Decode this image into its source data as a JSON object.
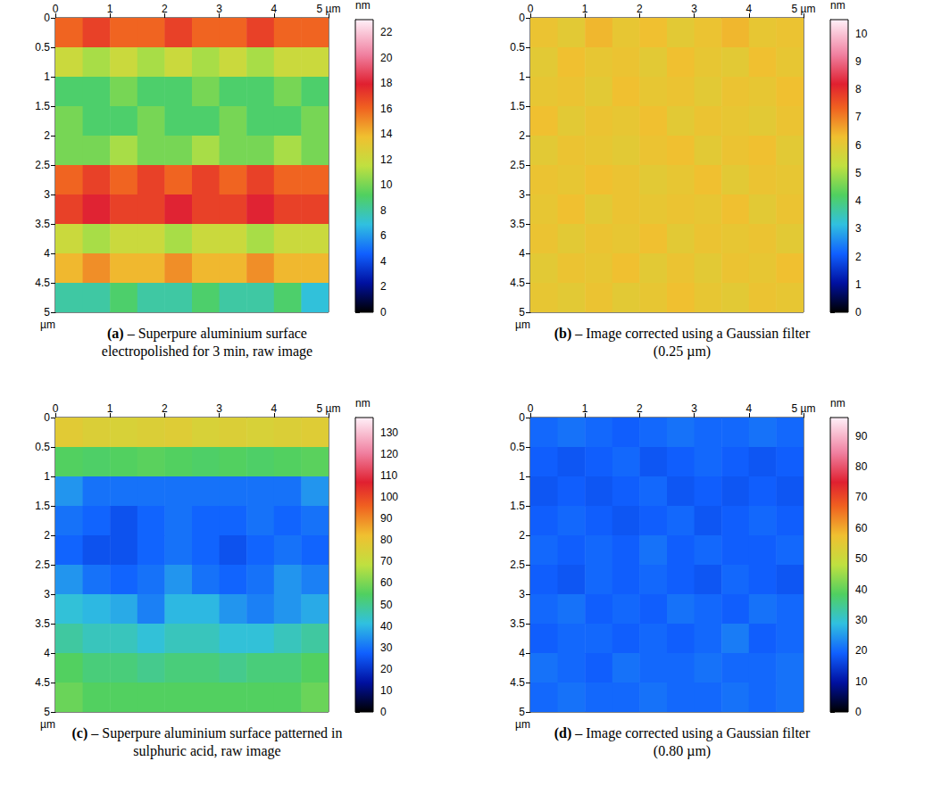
{
  "chart_data": [
    {
      "type": "heatmap",
      "label": "(a)",
      "caption": "– Superpure aluminium surface electropolished for 3 min, raw image",
      "xlim": [
        0,
        5
      ],
      "xticks": [
        0,
        1,
        2,
        3,
        4,
        {
          "value": 5,
          "label": "5 µm"
        }
      ],
      "ylim": [
        0,
        5
      ],
      "yticks": [
        0,
        0.5,
        1,
        1.5,
        2,
        2.5,
        3,
        3.5,
        4,
        4.5,
        5
      ],
      "y_label": "µm",
      "x": [
        0.25,
        0.75,
        1.25,
        1.75,
        2.25,
        2.75,
        3.25,
        3.75,
        4.25,
        4.75
      ],
      "y": [
        0.25,
        0.75,
        1.25,
        1.75,
        2.25,
        2.75,
        3.25,
        3.75,
        4.25,
        4.75
      ],
      "cells": [
        [
          16,
          17,
          16,
          16,
          17,
          16,
          16,
          17,
          16,
          16
        ],
        [
          12,
          11,
          12,
          11,
          12,
          11,
          12,
          11,
          12,
          12
        ],
        [
          9,
          9,
          10,
          9,
          9,
          10,
          9,
          9,
          10,
          9
        ],
        [
          10,
          9,
          9,
          10,
          9,
          9,
          10,
          9,
          9,
          10
        ],
        [
          10,
          10,
          11,
          10,
          10,
          11,
          10,
          10,
          11,
          10
        ],
        [
          16,
          17,
          16,
          17,
          16,
          17,
          16,
          17,
          16,
          16
        ],
        [
          17,
          18,
          17,
          17,
          18,
          17,
          17,
          18,
          17,
          17
        ],
        [
          12,
          11,
          12,
          12,
          11,
          12,
          12,
          11,
          12,
          12
        ],
        [
          14,
          15,
          14,
          14,
          15,
          14,
          14,
          15,
          14,
          14
        ],
        [
          8,
          8,
          9,
          8,
          8,
          9,
          8,
          8,
          9,
          7
        ]
      ],
      "colorbar_label": "nm",
      "colorbar_lim": [
        0,
        23
      ],
      "colorbar_ticks": [
        0,
        2,
        4,
        6,
        8,
        10,
        12,
        14,
        16,
        18,
        20,
        22
      ]
    },
    {
      "type": "heatmap",
      "label": "(b)",
      "caption": "– Image corrected using a Gaussian filter (0.25 µm)",
      "xlim": [
        0,
        5
      ],
      "xticks": [
        0,
        1,
        2,
        3,
        4,
        {
          "value": 5,
          "label": "5 µm"
        }
      ],
      "ylim": [
        0,
        5
      ],
      "yticks": [
        0,
        0.5,
        1,
        1.5,
        2,
        2.5,
        3,
        3.5,
        4,
        4.5,
        5
      ],
      "y_label": "µm",
      "x": [
        0.25,
        0.75,
        1.25,
        1.75,
        2.25,
        2.75,
        3.25,
        3.75,
        4.25,
        4.75
      ],
      "y": [
        0.25,
        0.75,
        1.25,
        1.75,
        2.25,
        2.75,
        3.25,
        3.75,
        4.25,
        4.75
      ],
      "cells": [
        [
          6.2,
          6.0,
          6.4,
          6.1,
          6.3,
          6.0,
          6.2,
          6.4,
          6.1,
          6.2
        ],
        [
          6.0,
          6.3,
          6.1,
          6.2,
          6.0,
          6.3,
          6.1,
          6.0,
          6.3,
          6.1
        ],
        [
          6.1,
          6.2,
          6.0,
          6.3,
          6.1,
          6.2,
          6.0,
          6.2,
          6.1,
          6.3
        ],
        [
          6.3,
          6.0,
          6.2,
          6.1,
          6.3,
          6.0,
          6.2,
          6.1,
          6.0,
          6.2
        ],
        [
          6.0,
          6.2,
          6.1,
          6.0,
          6.2,
          6.3,
          6.0,
          6.2,
          6.3,
          6.0
        ],
        [
          6.2,
          6.1,
          6.3,
          6.2,
          6.0,
          6.1,
          6.3,
          6.0,
          6.2,
          6.1
        ],
        [
          6.1,
          6.3,
          6.0,
          6.2,
          6.1,
          6.2,
          6.1,
          6.3,
          6.0,
          6.2
        ],
        [
          6.2,
          6.0,
          6.2,
          6.1,
          6.3,
          6.0,
          6.2,
          6.1,
          6.2,
          6.0
        ],
        [
          6.0,
          6.2,
          6.1,
          6.3,
          6.0,
          6.2,
          6.0,
          6.2,
          6.1,
          6.3
        ],
        [
          6.1,
          6.0,
          6.2,
          6.0,
          6.1,
          6.3,
          6.1,
          6.0,
          6.2,
          6.1
        ]
      ],
      "colorbar_label": "nm",
      "colorbar_lim": [
        0,
        10.5
      ],
      "colorbar_ticks": [
        0,
        1,
        2,
        3,
        4,
        5,
        6,
        7,
        8,
        9,
        10
      ]
    },
    {
      "type": "heatmap",
      "label": "(c)",
      "caption": "– Superpure aluminium surface patterned in sulphuric acid, raw image",
      "xlim": [
        0,
        5
      ],
      "xticks": [
        0,
        1,
        2,
        3,
        4,
        {
          "value": 5,
          "label": "5 µm"
        }
      ],
      "ylim": [
        0,
        5
      ],
      "yticks": [
        0,
        0.5,
        1,
        1.5,
        2,
        2.5,
        3,
        3.5,
        4,
        4.5,
        5
      ],
      "y_label": "µm",
      "x": [
        0.25,
        0.75,
        1.25,
        1.75,
        2.25,
        2.75,
        3.25,
        3.75,
        4.25,
        4.75
      ],
      "y": [
        0.25,
        0.75,
        1.25,
        1.75,
        2.25,
        2.75,
        3.25,
        3.75,
        4.25,
        4.75
      ],
      "cells": [
        [
          78,
          76,
          75,
          76,
          77,
          75,
          76,
          75,
          76,
          77
        ],
        [
          55,
          54,
          55,
          56,
          55,
          54,
          55,
          54,
          55,
          56
        ],
        [
          35,
          30,
          30,
          30,
          30,
          30,
          30,
          30,
          30,
          35
        ],
        [
          30,
          28,
          25,
          28,
          30,
          28,
          28,
          30,
          28,
          30
        ],
        [
          28,
          25,
          25,
          28,
          30,
          28,
          25,
          28,
          30,
          28
        ],
        [
          35,
          30,
          28,
          30,
          35,
          30,
          28,
          30,
          35,
          32
        ],
        [
          42,
          40,
          38,
          32,
          40,
          40,
          35,
          32,
          35,
          38
        ],
        [
          48,
          45,
          45,
          42,
          45,
          45,
          42,
          42,
          45,
          48
        ],
        [
          55,
          52,
          52,
          50,
          52,
          52,
          50,
          52,
          52,
          55
        ],
        [
          58,
          55,
          55,
          55,
          55,
          55,
          55,
          55,
          55,
          58
        ]
      ],
      "colorbar_label": "nm",
      "colorbar_lim": [
        0,
        137
      ],
      "colorbar_ticks": [
        0,
        10,
        20,
        30,
        40,
        50,
        60,
        70,
        80,
        90,
        100,
        110,
        120,
        130
      ]
    },
    {
      "type": "heatmap",
      "label": "(d)",
      "caption": "– Image corrected using a Gaussian filter (0.80 µm)",
      "xlim": [
        0,
        5
      ],
      "xticks": [
        0,
        1,
        2,
        3,
        4,
        {
          "value": 5,
          "label": "5 µm"
        }
      ],
      "ylim": [
        0,
        5
      ],
      "yticks": [
        0,
        0.5,
        1,
        1.5,
        2,
        2.5,
        3,
        3.5,
        4,
        4.5,
        5
      ],
      "y_label": "µm",
      "x": [
        0.25,
        0.75,
        1.25,
        1.75,
        2.25,
        2.75,
        3.25,
        3.75,
        4.25,
        4.75
      ],
      "y": [
        0.25,
        0.75,
        1.25,
        1.75,
        2.25,
        2.75,
        3.25,
        3.75,
        4.25,
        4.75
      ],
      "cells": [
        [
          20,
          21,
          20,
          19,
          20,
          21,
          20,
          20,
          21,
          20
        ],
        [
          19,
          18,
          19,
          20,
          18,
          19,
          20,
          19,
          18,
          19
        ],
        [
          18,
          19,
          18,
          19,
          20,
          18,
          19,
          18,
          19,
          18
        ],
        [
          19,
          20,
          19,
          18,
          19,
          20,
          18,
          19,
          20,
          19
        ],
        [
          20,
          19,
          20,
          19,
          21,
          19,
          20,
          19,
          19,
          20
        ],
        [
          19,
          18,
          20,
          19,
          20,
          19,
          18,
          20,
          19,
          18
        ],
        [
          20,
          21,
          19,
          20,
          19,
          21,
          20,
          19,
          21,
          20
        ],
        [
          19,
          20,
          20,
          19,
          20,
          19,
          20,
          22,
          19,
          20
        ],
        [
          21,
          20,
          19,
          21,
          20,
          20,
          21,
          20,
          20,
          21
        ],
        [
          20,
          21,
          20,
          20,
          21,
          20,
          20,
          21,
          20,
          21
        ]
      ],
      "colorbar_label": "nm",
      "colorbar_lim": [
        0,
        96
      ],
      "colorbar_ticks": [
        0,
        10,
        20,
        30,
        40,
        50,
        60,
        70,
        80,
        90
      ]
    }
  ]
}
